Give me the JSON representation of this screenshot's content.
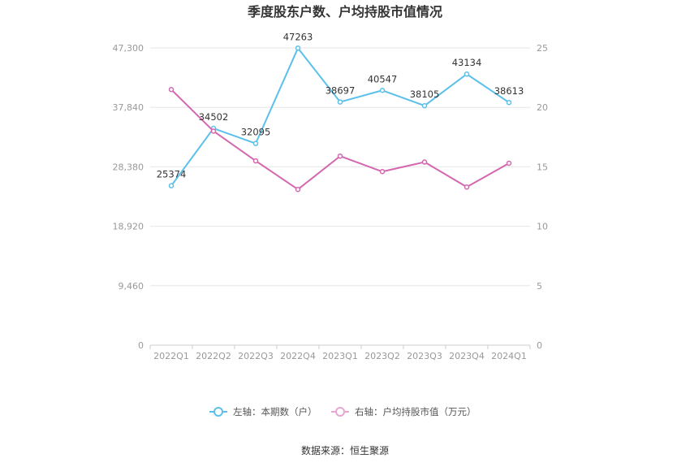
{
  "chart_data": {
    "type": "line",
    "title": "季度股东户数、户均持股市值情况",
    "categories": [
      "2022Q1",
      "2022Q2",
      "2022Q3",
      "2022Q4",
      "2023Q1",
      "2023Q2",
      "2023Q3",
      "2023Q4",
      "2024Q1"
    ],
    "y_left": {
      "ticks": [
        "0",
        "9,460",
        "18,920",
        "28,380",
        "37,840",
        "47,300"
      ],
      "range": [
        0,
        47300
      ]
    },
    "y_right": {
      "ticks": [
        "0",
        "5",
        "10",
        "15",
        "20",
        "25"
      ],
      "range": [
        0,
        25
      ]
    },
    "series": [
      {
        "name": "左轴：本期数（户）",
        "axis": "left",
        "color": "#5bc0eb",
        "values": [
          25374,
          34502,
          32095,
          47263,
          38697,
          40547,
          38105,
          43134,
          38613
        ],
        "labels": [
          "25374",
          "34502",
          "32095",
          "47263",
          "38697",
          "40547",
          "38105",
          "43134",
          "38613"
        ]
      },
      {
        "name": "右轴：户均持股市值（万元）",
        "axis": "right",
        "color": "#d467b0",
        "values": [
          21.5,
          18.0,
          15.5,
          13.1,
          15.9,
          14.6,
          15.4,
          13.3,
          15.3
        ]
      }
    ],
    "grid": true,
    "legend_position": "bottom"
  },
  "source": "数据来源：恒生聚源"
}
